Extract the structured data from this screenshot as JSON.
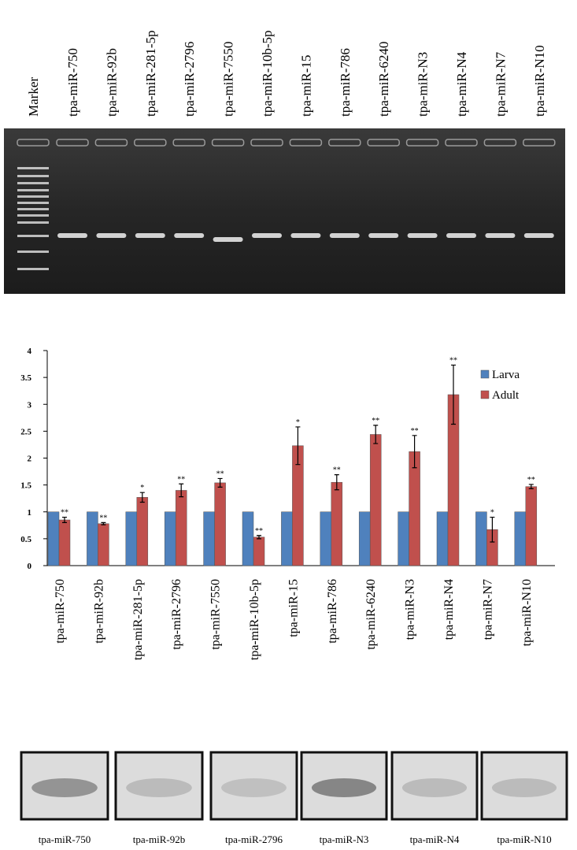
{
  "gel": {
    "lanes": [
      "Marker",
      "tpa-miR-750",
      "tpa-miR-92b",
      "tpa-miR-281-5p",
      "tpa-miR-2796",
      "tpa-miR-7550",
      "tpa-miR-10b-5p",
      "tpa-miR-15",
      "tpa-miR-786",
      "tpa-miR-6240",
      "tpa-miR-N3",
      "tpa-miR-N4",
      "tpa-miR-N7",
      "tpa-miR-N10"
    ]
  },
  "chart_data": {
    "type": "bar",
    "categories": [
      "tpa-miR-750",
      "tpa-miR-92b",
      "tpa-miR-281-5p",
      "tpa-miR-2796",
      "tpa-miR-7550",
      "tpa-miR-10b-5p",
      "tpa-miR-15",
      "tpa-miR-786",
      "tpa-miR-6240",
      "tpa-miR-N3",
      "tpa-miR-N4",
      "tpa-miR-N7",
      "tpa-miR-N10"
    ],
    "series": [
      {
        "name": "Larva",
        "color": "#4f81bd",
        "values": [
          1,
          1,
          1,
          1,
          1,
          1,
          1,
          1,
          1,
          1,
          1,
          1,
          1
        ]
      },
      {
        "name": "Adult",
        "color": "#c0504d",
        "values": [
          0.85,
          0.78,
          1.27,
          1.4,
          1.54,
          0.53,
          2.23,
          1.55,
          2.44,
          2.12,
          3.18,
          0.67,
          1.47
        ],
        "errors": [
          0.05,
          0.02,
          0.09,
          0.12,
          0.08,
          0.03,
          0.35,
          0.14,
          0.17,
          0.3,
          0.55,
          0.23,
          0.04
        ],
        "significance": [
          "**",
          "**",
          "*",
          "**",
          "**",
          "**",
          "*",
          "**",
          "**",
          "**",
          "**",
          "*",
          "**"
        ]
      }
    ],
    "ylim": [
      0,
      4
    ],
    "yticks": [
      0,
      0.5,
      1,
      1.5,
      2,
      2.5,
      3,
      3.5,
      4
    ],
    "legend": "top-right"
  },
  "blots": {
    "labels": [
      "tpa-miR-750",
      "tpa-miR-92b",
      "tpa-miR-2796",
      "tpa-miR-N3",
      "tpa-miR-N4",
      "tpa-miR-N10"
    ]
  }
}
